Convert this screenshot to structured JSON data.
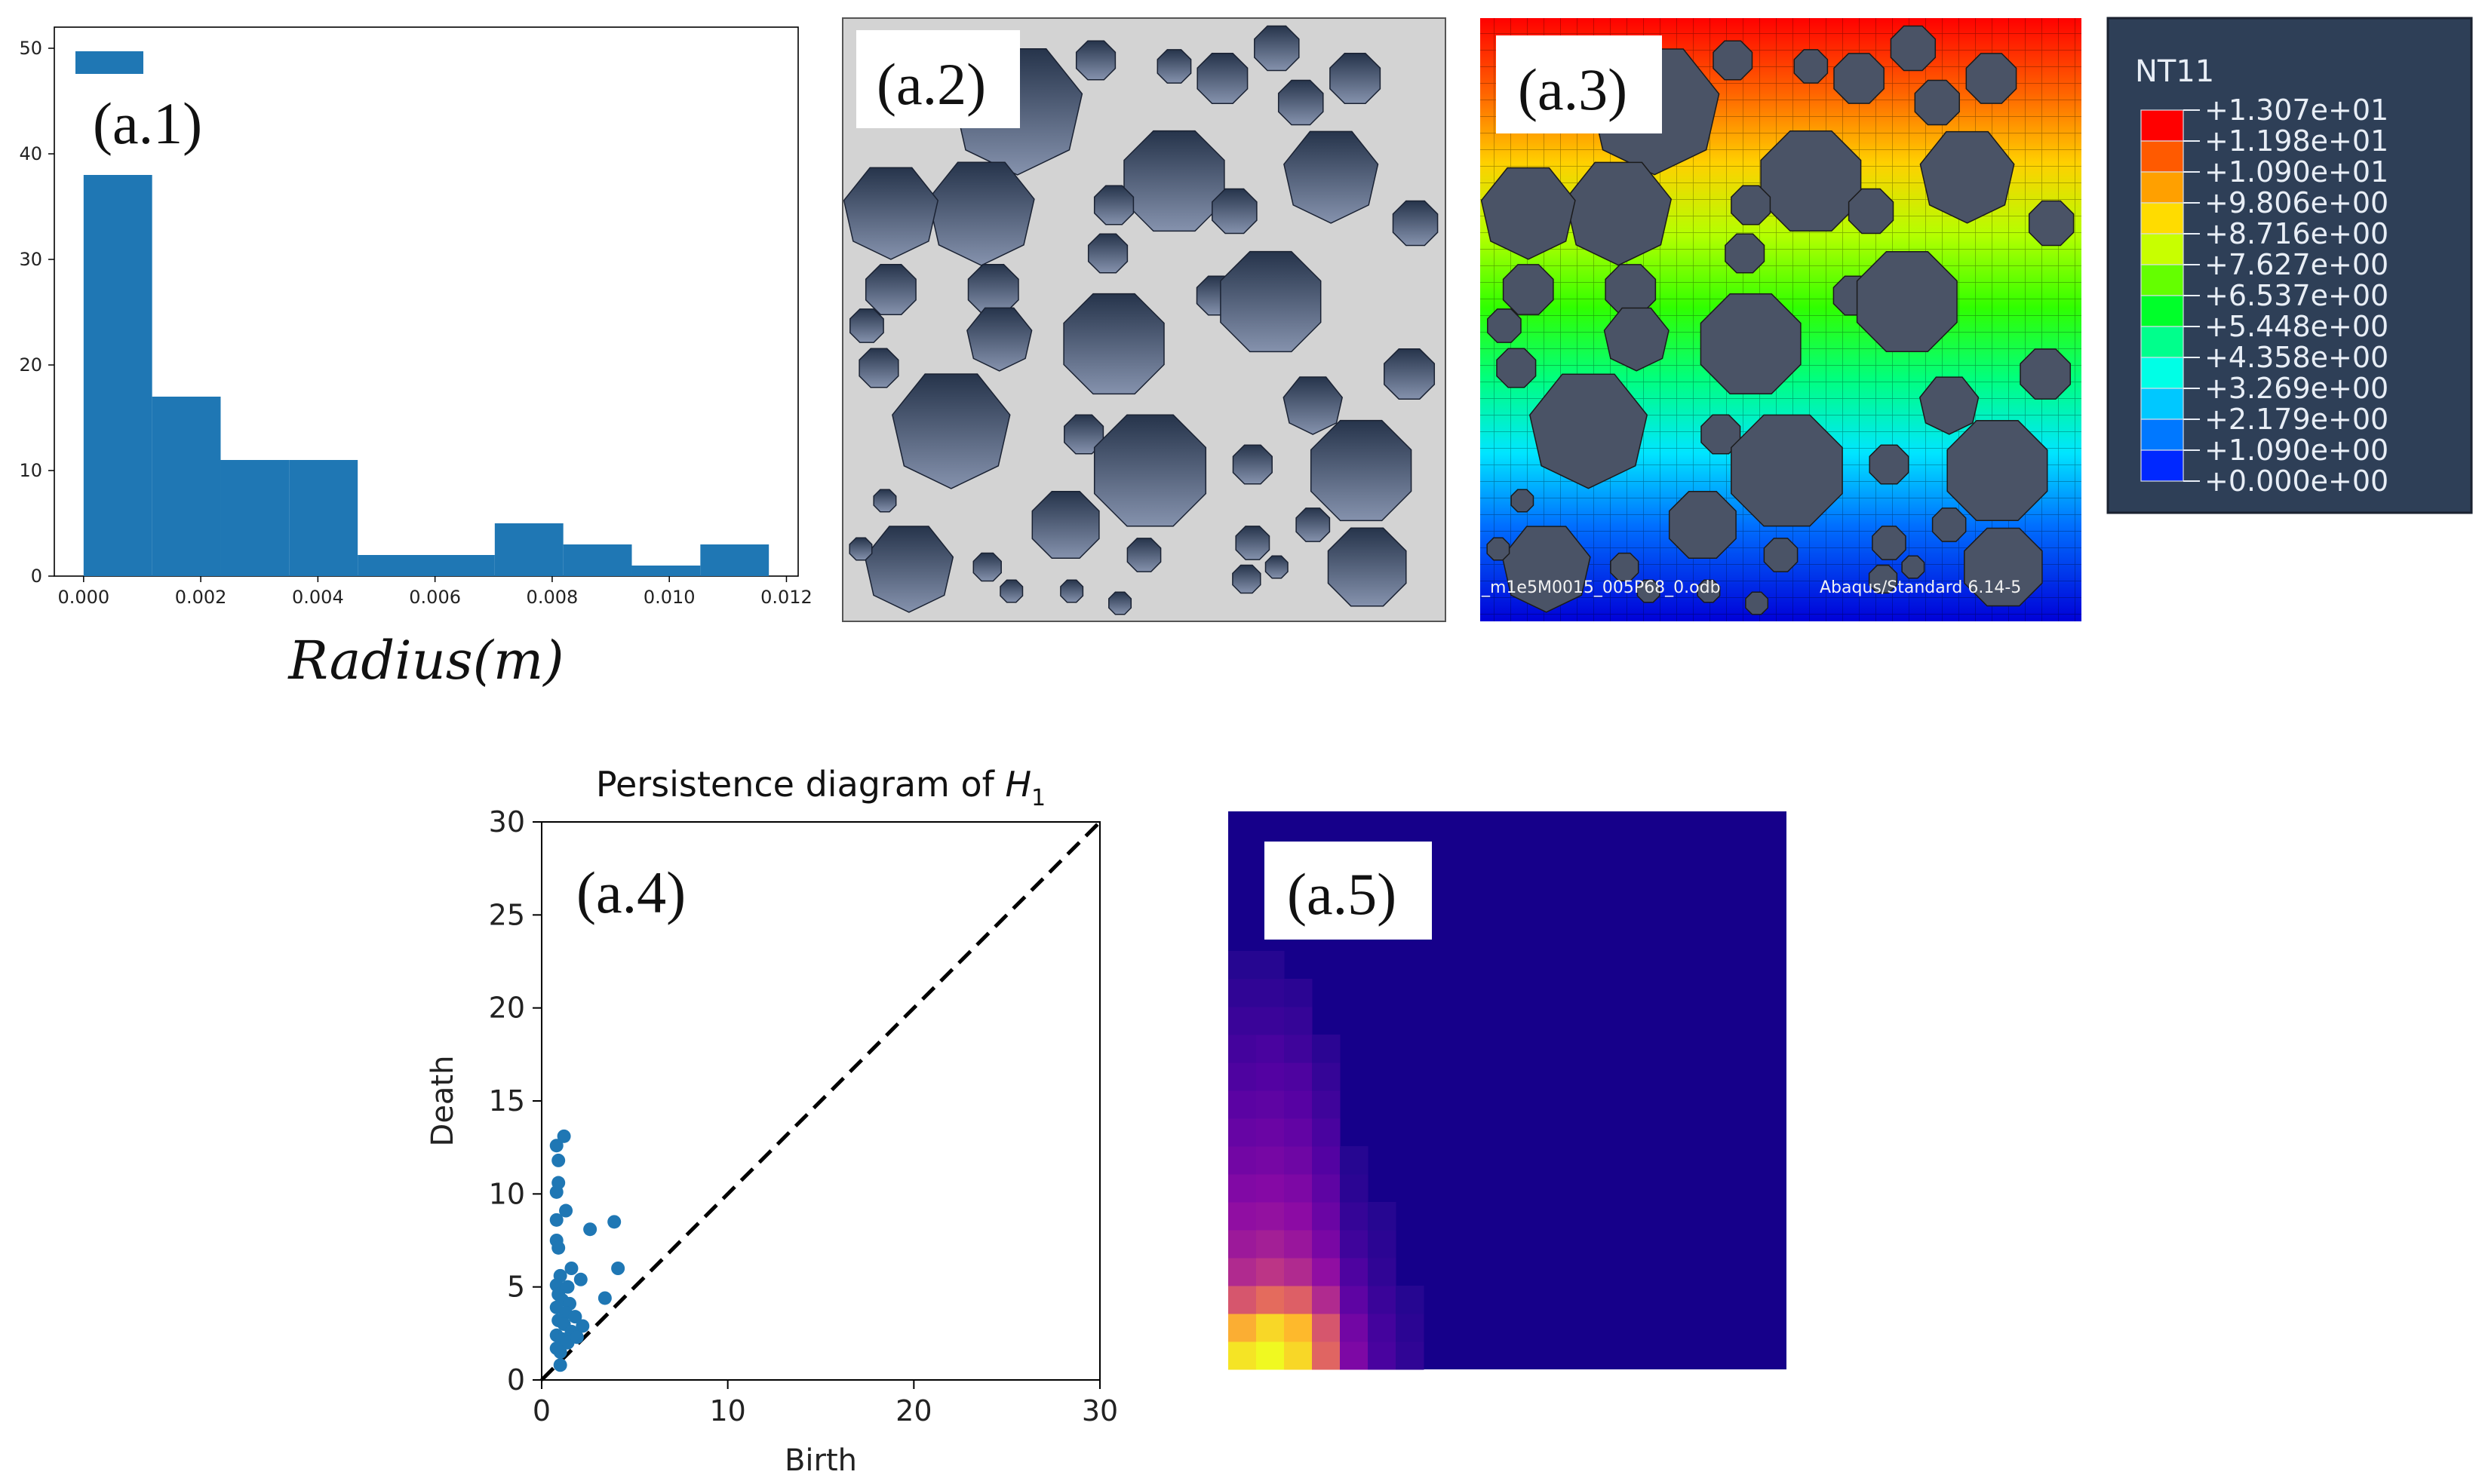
{
  "chart_data": [
    {
      "id": "a1",
      "type": "bar",
      "panel_label": "(a.1)",
      "xlabel": "Radius(m)",
      "ylabel": "",
      "xlim": [
        -0.0005,
        0.0122
      ],
      "ylim": [
        0,
        52
      ],
      "xticks": [
        0,
        0.002,
        0.004,
        0.006,
        0.008,
        0.01,
        0.012
      ],
      "xtick_labels": [
        "0.000",
        "0.002",
        "0.004",
        "0.006",
        "0.008",
        "0.010",
        "0.012"
      ],
      "yticks": [
        0,
        10,
        20,
        30,
        40,
        50
      ],
      "ytick_labels": [
        "0",
        "10",
        "20",
        "30",
        "40",
        "50"
      ],
      "bins": [
        {
          "x0": 0.0,
          "x1": 0.00117,
          "value": 38
        },
        {
          "x0": 0.00117,
          "x1": 0.00234,
          "value": 17
        },
        {
          "x0": 0.00234,
          "x1": 0.00351,
          "value": 11
        },
        {
          "x0": 0.00351,
          "x1": 0.00468,
          "value": 11
        },
        {
          "x0": 0.00468,
          "x1": 0.00585,
          "value": 2
        },
        {
          "x0": 0.00585,
          "x1": 0.00702,
          "value": 2
        },
        {
          "x0": 0.00702,
          "x1": 0.00819,
          "value": 5
        },
        {
          "x0": 0.00819,
          "x1": 0.00936,
          "value": 3
        },
        {
          "x0": 0.00936,
          "x1": 0.01053,
          "value": 1
        },
        {
          "x0": 0.01053,
          "x1": 0.0117,
          "value": 3
        }
      ],
      "color": "#1f77b4"
    },
    {
      "id": "a4",
      "type": "scatter",
      "panel_label": "(a.4)",
      "title_text": "Persistence diagram of ",
      "title_math": "H",
      "title_sub": "1",
      "xlabel": "Birth",
      "ylabel": "Death",
      "xlim": [
        0,
        30
      ],
      "ylim": [
        0,
        30
      ],
      "xticks": [
        0,
        10,
        20,
        30
      ],
      "xtick_labels": [
        "0",
        "10",
        "20",
        "30"
      ],
      "yticks": [
        0,
        5,
        10,
        15,
        20,
        25,
        30
      ],
      "ytick_labels": [
        "0",
        "5",
        "10",
        "15",
        "20",
        "25",
        "30"
      ],
      "diagonal": "dashed",
      "color": "#1f77b4",
      "points": [
        [
          1.2,
          13.1
        ],
        [
          0.8,
          12.6
        ],
        [
          0.9,
          11.8
        ],
        [
          0.9,
          10.6
        ],
        [
          0.8,
          10.1
        ],
        [
          1.3,
          9.1
        ],
        [
          0.8,
          8.6
        ],
        [
          0.8,
          7.5
        ],
        [
          0.9,
          7.1
        ],
        [
          2.6,
          8.1
        ],
        [
          3.9,
          8.5
        ],
        [
          4.1,
          6.0
        ],
        [
          1.6,
          6.0
        ],
        [
          1.0,
          5.6
        ],
        [
          0.8,
          5.1
        ],
        [
          1.4,
          5.0
        ],
        [
          2.1,
          5.4
        ],
        [
          0.9,
          4.6
        ],
        [
          1.1,
          4.3
        ],
        [
          1.5,
          4.1
        ],
        [
          0.8,
          3.9
        ],
        [
          1.3,
          3.6
        ],
        [
          1.8,
          3.4
        ],
        [
          0.9,
          3.2
        ],
        [
          1.2,
          3.0
        ],
        [
          2.2,
          2.9
        ],
        [
          1.6,
          2.6
        ],
        [
          0.8,
          2.4
        ],
        [
          1.1,
          2.2
        ],
        [
          1.4,
          2.0
        ],
        [
          0.8,
          1.7
        ],
        [
          1.0,
          1.5
        ],
        [
          3.4,
          4.4
        ],
        [
          1.9,
          2.3
        ],
        [
          1.0,
          0.8
        ]
      ]
    },
    {
      "id": "a5",
      "type": "heatmap",
      "panel_label": "(a.5)",
      "grid": [
        20,
        20
      ],
      "colormap": "plasma",
      "cells": [
        {
          "col": 0,
          "row": 0,
          "value": 0.95
        },
        {
          "col": 1,
          "row": 0,
          "value": 1.0
        },
        {
          "col": 2,
          "row": 0,
          "value": 0.92
        },
        {
          "col": 3,
          "row": 0,
          "value": 0.6
        },
        {
          "col": 4,
          "row": 0,
          "value": 0.25
        },
        {
          "col": 5,
          "row": 0,
          "value": 0.12
        },
        {
          "col": 6,
          "row": 0,
          "value": 0.07
        },
        {
          "col": 0,
          "row": 1,
          "value": 0.82
        },
        {
          "col": 1,
          "row": 1,
          "value": 0.92
        },
        {
          "col": 2,
          "row": 1,
          "value": 0.85
        },
        {
          "col": 3,
          "row": 1,
          "value": 0.55
        },
        {
          "col": 4,
          "row": 1,
          "value": 0.22
        },
        {
          "col": 5,
          "row": 1,
          "value": 0.11
        },
        {
          "col": 6,
          "row": 1,
          "value": 0.06
        },
        {
          "col": 0,
          "row": 2,
          "value": 0.55
        },
        {
          "col": 1,
          "row": 2,
          "value": 0.62
        },
        {
          "col": 2,
          "row": 2,
          "value": 0.58
        },
        {
          "col": 3,
          "row": 2,
          "value": 0.4
        },
        {
          "col": 4,
          "row": 2,
          "value": 0.17
        },
        {
          "col": 5,
          "row": 2,
          "value": 0.09
        },
        {
          "col": 6,
          "row": 2,
          "value": 0.05
        },
        {
          "col": 0,
          "row": 3,
          "value": 0.4
        },
        {
          "col": 1,
          "row": 3,
          "value": 0.44
        },
        {
          "col": 2,
          "row": 3,
          "value": 0.4
        },
        {
          "col": 3,
          "row": 3,
          "value": 0.3
        },
        {
          "col": 4,
          "row": 3,
          "value": 0.13
        },
        {
          "col": 5,
          "row": 3,
          "value": 0.07
        },
        {
          "col": 0,
          "row": 4,
          "value": 0.34
        },
        {
          "col": 1,
          "row": 4,
          "value": 0.36
        },
        {
          "col": 2,
          "row": 4,
          "value": 0.33
        },
        {
          "col": 3,
          "row": 4,
          "value": 0.24
        },
        {
          "col": 4,
          "row": 4,
          "value": 0.1
        },
        {
          "col": 5,
          "row": 4,
          "value": 0.06
        },
        {
          "col": 0,
          "row": 5,
          "value": 0.3
        },
        {
          "col": 1,
          "row": 5,
          "value": 0.31
        },
        {
          "col": 2,
          "row": 5,
          "value": 0.29
        },
        {
          "col": 3,
          "row": 5,
          "value": 0.2
        },
        {
          "col": 4,
          "row": 5,
          "value": 0.08
        },
        {
          "col": 5,
          "row": 5,
          "value": 0.05
        },
        {
          "col": 0,
          "row": 6,
          "value": 0.26
        },
        {
          "col": 1,
          "row": 6,
          "value": 0.27
        },
        {
          "col": 2,
          "row": 6,
          "value": 0.25
        },
        {
          "col": 3,
          "row": 6,
          "value": 0.17
        },
        {
          "col": 4,
          "row": 6,
          "value": 0.06
        },
        {
          "col": 0,
          "row": 7,
          "value": 0.22
        },
        {
          "col": 1,
          "row": 7,
          "value": 0.23
        },
        {
          "col": 2,
          "row": 7,
          "value": 0.21
        },
        {
          "col": 3,
          "row": 7,
          "value": 0.14
        },
        {
          "col": 4,
          "row": 7,
          "value": 0.05
        },
        {
          "col": 0,
          "row": 8,
          "value": 0.19
        },
        {
          "col": 1,
          "row": 8,
          "value": 0.2
        },
        {
          "col": 2,
          "row": 8,
          "value": 0.18
        },
        {
          "col": 3,
          "row": 8,
          "value": 0.12
        },
        {
          "col": 0,
          "row": 9,
          "value": 0.16
        },
        {
          "col": 1,
          "row": 9,
          "value": 0.17
        },
        {
          "col": 2,
          "row": 9,
          "value": 0.15
        },
        {
          "col": 3,
          "row": 9,
          "value": 0.1
        },
        {
          "col": 0,
          "row": 10,
          "value": 0.13
        },
        {
          "col": 1,
          "row": 10,
          "value": 0.14
        },
        {
          "col": 2,
          "row": 10,
          "value": 0.13
        },
        {
          "col": 3,
          "row": 10,
          "value": 0.08
        },
        {
          "col": 0,
          "row": 11,
          "value": 0.11
        },
        {
          "col": 1,
          "row": 11,
          "value": 0.12
        },
        {
          "col": 2,
          "row": 11,
          "value": 0.1
        },
        {
          "col": 3,
          "row": 11,
          "value": 0.06
        },
        {
          "col": 0,
          "row": 12,
          "value": 0.09
        },
        {
          "col": 1,
          "row": 12,
          "value": 0.09
        },
        {
          "col": 2,
          "row": 12,
          "value": 0.08
        },
        {
          "col": 0,
          "row": 13,
          "value": 0.07
        },
        {
          "col": 1,
          "row": 13,
          "value": 0.07
        },
        {
          "col": 2,
          "row": 13,
          "value": 0.06
        },
        {
          "col": 0,
          "row": 14,
          "value": 0.05
        },
        {
          "col": 1,
          "row": 14,
          "value": 0.05
        }
      ]
    }
  ],
  "images": {
    "a2": {
      "panel_label": "(a.2)",
      "background": "#d3d3d3",
      "particle_top": "#26344b",
      "particle_bottom": "#8592ad"
    },
    "a3": {
      "panel_label": "(a.3)",
      "odb_name": "_m1e5M0015_005P68_0.odb",
      "solver": "Abaqus/Standard 6.14-5"
    },
    "legend": {
      "title": "NT11",
      "values": [
        "+1.307e+01",
        "+1.198e+01",
        "+1.090e+01",
        "+9.806e+00",
        "+8.716e+00",
        "+7.627e+00",
        "+6.537e+00",
        "+5.448e+00",
        "+4.358e+00",
        "+3.269e+00",
        "+2.179e+00",
        "+1.090e+00",
        "+0.000e+00"
      ],
      "colors": [
        "#ff0000",
        "#ff5a00",
        "#ffa000",
        "#ffdc00",
        "#c8ff00",
        "#64ff00",
        "#00ff2a",
        "#00ff8c",
        "#00ffe6",
        "#00c8ff",
        "#0078ff",
        "#0028ff",
        "#0000ff"
      ],
      "background": "#2e3f57"
    }
  }
}
